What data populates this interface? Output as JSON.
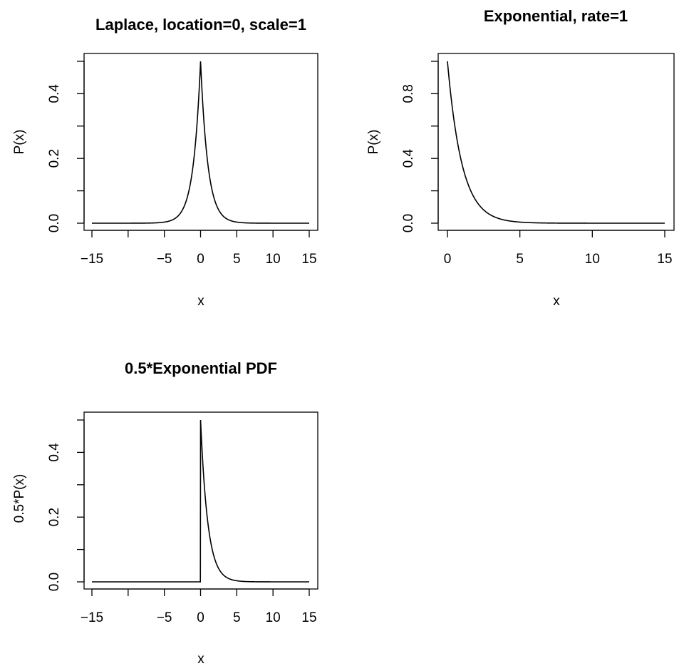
{
  "chart_data": [
    {
      "type": "line",
      "title": "Laplace, location=0, scale=1",
      "xlabel": "x",
      "ylabel": "P(x)",
      "function": "laplace",
      "location": 0,
      "scale": 1,
      "xlim": [
        -15,
        15
      ],
      "ylim": [
        0,
        0.5
      ],
      "xticks": [
        -15,
        -10,
        -5,
        0,
        5,
        10,
        15
      ],
      "xtick_labels": [
        "−15",
        "",
        "−5",
        "0",
        "5",
        "10",
        "15"
      ],
      "yticks": [
        0,
        0.1,
        0.2,
        0.3,
        0.4,
        0.5
      ],
      "ytick_labels": [
        "0.0",
        "",
        "0.2",
        "",
        "0.4",
        ""
      ],
      "x": [
        -15,
        -10,
        -5,
        -3,
        -2,
        -1,
        -0.5,
        0,
        0.5,
        1,
        2,
        3,
        5,
        10,
        15
      ],
      "y": [
        2e-07,
        2.27e-05,
        0.00337,
        0.0249,
        0.0677,
        0.184,
        0.303,
        0.5,
        0.303,
        0.184,
        0.0677,
        0.0249,
        0.00337,
        2.27e-05,
        2e-07
      ]
    },
    {
      "type": "line",
      "title": "Exponential, rate=1",
      "xlabel": "x",
      "ylabel": "P(x)",
      "function": "exponential",
      "rate": 1,
      "xlim": [
        0,
        15
      ],
      "ylim": [
        0,
        1
      ],
      "xticks": [
        0,
        5,
        10,
        15
      ],
      "xtick_labels": [
        "0",
        "5",
        "10",
        "15"
      ],
      "yticks": [
        0,
        0.2,
        0.4,
        0.6,
        0.8,
        1.0
      ],
      "ytick_labels": [
        "0.0",
        "",
        "0.4",
        "",
        "0.8",
        ""
      ],
      "x": [
        0,
        0.5,
        1,
        2,
        3,
        4,
        5,
        10,
        15
      ],
      "y": [
        1.0,
        0.607,
        0.368,
        0.135,
        0.0498,
        0.0183,
        0.00674,
        4.54e-05,
        3e-07
      ]
    },
    {
      "type": "line",
      "title": "0.5*Exponential PDF",
      "xlabel": "x",
      "ylabel": "0.5*P(x)",
      "function": "half-exponential",
      "rate": 1,
      "xlim": [
        -15,
        15
      ],
      "ylim": [
        0,
        0.5
      ],
      "xticks": [
        -15,
        -10,
        -5,
        0,
        5,
        10,
        15
      ],
      "xtick_labels": [
        "−15",
        "",
        "−5",
        "0",
        "5",
        "10",
        "15"
      ],
      "yticks": [
        0,
        0.1,
        0.2,
        0.3,
        0.4,
        0.5
      ],
      "ytick_labels": [
        "0.0",
        "",
        "0.2",
        "",
        "0.4",
        ""
      ],
      "x": [
        -15,
        -5,
        0,
        0,
        0.5,
        1,
        2,
        3,
        5,
        10,
        15
      ],
      "y": [
        0,
        0,
        0,
        0.5,
        0.303,
        0.184,
        0.0677,
        0.0249,
        0.00337,
        2.27e-05,
        2e-07
      ]
    }
  ]
}
